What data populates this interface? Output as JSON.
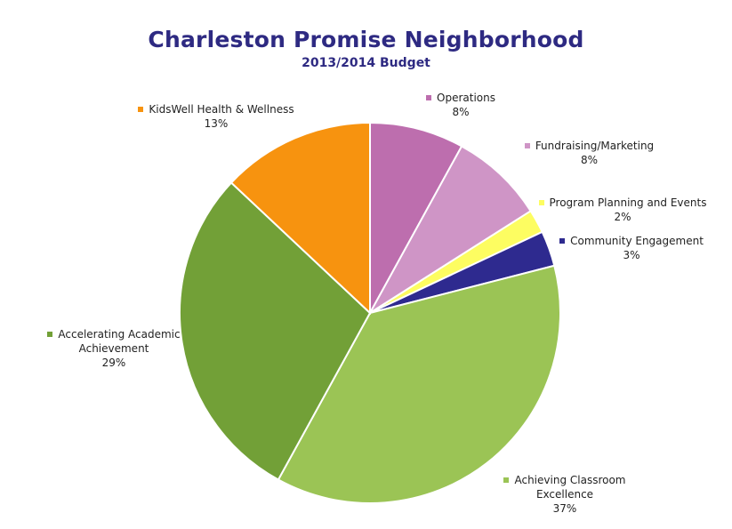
{
  "chart_data": {
    "type": "pie",
    "title": "Charleston Promise Neighborhood",
    "subtitle": "2013/2014 Budget",
    "slices": [
      {
        "label": "Operations",
        "value": 8,
        "pct_label": "8%",
        "color": "#BD6EAE"
      },
      {
        "label": "Fundraising/Marketing",
        "value": 8,
        "pct_label": "8%",
        "color": "#CF95C6"
      },
      {
        "label": "Program Planning and Events",
        "value": 2,
        "pct_label": "2%",
        "color": "#FDFD61"
      },
      {
        "label": "Community Engagement",
        "value": 3,
        "pct_label": "3%",
        "color": "#2E2A8F"
      },
      {
        "label": "Achieving Classroom Excellence",
        "value": 37,
        "pct_label": "37%",
        "color": "#9BC455"
      },
      {
        "label": "Accelerating Academic Achievement",
        "value": 29,
        "pct_label": "29%",
        "color": "#72A037"
      },
      {
        "label": "KidsWell Health & Wellness",
        "value": 13,
        "pct_label": "13%",
        "color": "#F7930F"
      }
    ],
    "label_lines": [
      [
        "Operations"
      ],
      [
        "Fundraising/Marketing"
      ],
      [
        "Program Planning and Events"
      ],
      [
        "Community Engagement"
      ],
      [
        "Achieving Classroom",
        "Excellence"
      ],
      [
        "Accelerating Academic",
        "Achievement"
      ],
      [
        "KidsWell Health & Wellness"
      ]
    ],
    "legend": "none"
  }
}
